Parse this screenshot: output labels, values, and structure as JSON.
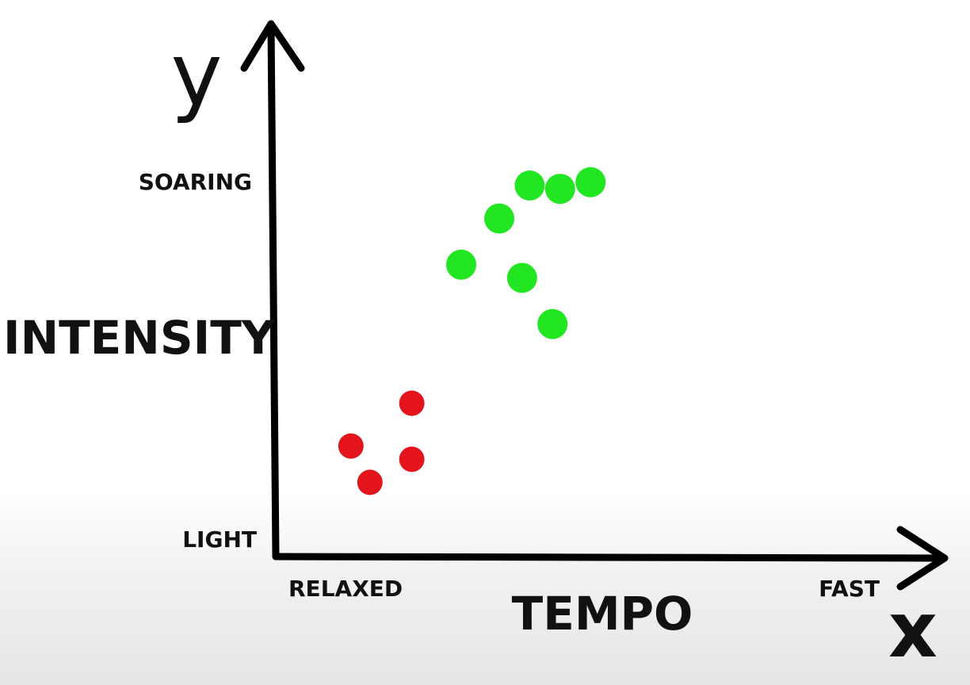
{
  "chart_data": {
    "type": "scatter",
    "xlabel": "TEMPO",
    "ylabel": "INTENSITY",
    "x_axis_symbol": "x",
    "y_axis_symbol": "y",
    "x_ticks": {
      "low": "RELAXED",
      "high": "FAST"
    },
    "y_ticks": {
      "low": "LIGHT",
      "high": "SOARING"
    },
    "xlim": [
      0,
      10
    ],
    "ylim": [
      0,
      10
    ],
    "grid": false,
    "legend": "none",
    "series": [
      {
        "color": "#e3141c",
        "points": [
          {
            "x": 1.1,
            "y": 2.1
          },
          {
            "x": 1.6,
            "y": 1.0
          },
          {
            "x": 2.7,
            "y": 3.4
          },
          {
            "x": 2.7,
            "y": 1.7
          }
        ]
      },
      {
        "color": "#22e622",
        "points": [
          {
            "x": 4.0,
            "y": 7.6
          },
          {
            "x": 5.0,
            "y": 9.0
          },
          {
            "x": 5.8,
            "y": 10.0
          },
          {
            "x": 5.6,
            "y": 7.2
          },
          {
            "x": 6.4,
            "y": 5.8
          },
          {
            "x": 6.6,
            "y": 9.9
          },
          {
            "x": 7.4,
            "y": 10.1
          }
        ]
      }
    ]
  }
}
